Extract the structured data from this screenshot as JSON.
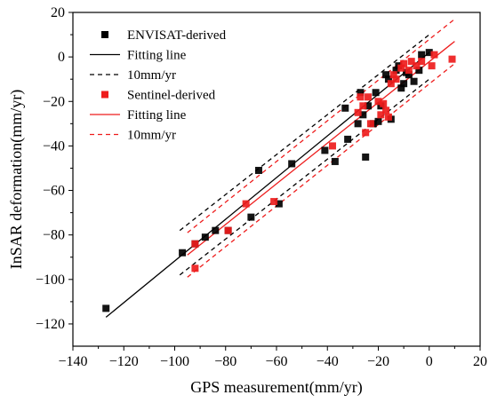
{
  "chart_data": {
    "type": "scatter",
    "xlabel": "GPS measurement(mm/yr)",
    "ylabel": "InSAR deformation(mm/yr)",
    "xlim": [
      -140,
      20
    ],
    "ylim": [
      -130,
      20
    ],
    "xticks": [
      -140,
      -120,
      -100,
      -80,
      -60,
      -40,
      -20,
      0,
      20
    ],
    "yticks": [
      -120,
      -100,
      -80,
      -60,
      -40,
      -20,
      0,
      20
    ],
    "xtick_labels": [
      "−140",
      "−120",
      "−100",
      "−80",
      "−60",
      "−40",
      "−20",
      "0",
      "20"
    ],
    "ytick_labels": [
      "−120",
      "−100",
      "−80",
      "−60",
      "−40",
      "−20",
      "0",
      "20"
    ],
    "grid": false,
    "legend_position": "top-left",
    "series": [
      {
        "name": "ENVISAT-derived",
        "kind": "points",
        "marker": "square",
        "color": "#000000",
        "points": [
          [
            -127,
            -113
          ],
          [
            -97,
            -88
          ],
          [
            -92,
            -84
          ],
          [
            -88,
            -81
          ],
          [
            -84,
            -78
          ],
          [
            -79,
            -78
          ],
          [
            -70,
            -72
          ],
          [
            -67,
            -51
          ],
          [
            -59,
            -66
          ],
          [
            -54,
            -48
          ],
          [
            -41,
            -42
          ],
          [
            -37,
            -47
          ],
          [
            -33,
            -23
          ],
          [
            -32,
            -37
          ],
          [
            -28,
            -30
          ],
          [
            -27,
            -16
          ],
          [
            -26,
            -26
          ],
          [
            -25,
            -45
          ],
          [
            -24,
            -22
          ],
          [
            -22,
            -30
          ],
          [
            -21,
            -16
          ],
          [
            -20,
            -29
          ],
          [
            -19,
            -22
          ],
          [
            -17,
            -8
          ],
          [
            -16,
            -10
          ],
          [
            -15,
            -28
          ],
          [
            -13,
            -6
          ],
          [
            -12,
            -4
          ],
          [
            -11,
            -14
          ],
          [
            -10,
            -12
          ],
          [
            -9,
            -7
          ],
          [
            -8,
            -8
          ],
          [
            -6,
            -11
          ],
          [
            -4,
            -6
          ],
          [
            -3,
            1
          ],
          [
            0,
            2
          ]
        ]
      },
      {
        "name": "Fitting line",
        "kind": "line",
        "color": "#000000",
        "dash": "solid",
        "x": [
          -127,
          0
        ],
        "y": [
          -117,
          2
        ]
      },
      {
        "name": "10mm/yr",
        "kind": "band",
        "color": "#000000",
        "dash": "dashed",
        "x": [
          -98,
          0
        ],
        "y_upper": [
          -78,
          10
        ],
        "y_lower": [
          -98,
          -10
        ]
      },
      {
        "name": "Sentinel-derived",
        "kind": "points",
        "marker": "square",
        "color": "#ee1c1c",
        "points": [
          [
            -92,
            -95
          ],
          [
            -92,
            -84
          ],
          [
            -79,
            -78
          ],
          [
            -72,
            -66
          ],
          [
            -61,
            -65
          ],
          [
            -38,
            -40
          ],
          [
            -28,
            -25
          ],
          [
            -27,
            -18
          ],
          [
            -26,
            -22
          ],
          [
            -25,
            -34
          ],
          [
            -24,
            -18
          ],
          [
            -23,
            -30
          ],
          [
            -20,
            -20
          ],
          [
            -19,
            -26
          ],
          [
            -18,
            -21
          ],
          [
            -17,
            -24
          ],
          [
            -16,
            -27
          ],
          [
            -15,
            -12
          ],
          [
            -14,
            -8
          ],
          [
            -13,
            -10
          ],
          [
            -11,
            -5
          ],
          [
            -10,
            -3
          ],
          [
            -8,
            -6
          ],
          [
            -7,
            -2
          ],
          [
            -5,
            -4
          ],
          [
            -3,
            -2
          ],
          [
            1,
            -4
          ],
          [
            2,
            1
          ],
          [
            9,
            -1
          ]
        ]
      },
      {
        "name": "Fitting line",
        "kind": "line",
        "color": "#ee1c1c",
        "dash": "solid",
        "x": [
          -95,
          10
        ],
        "y": [
          -89,
          7
        ]
      },
      {
        "name": "10mm/yr",
        "kind": "band",
        "color": "#ee1c1c",
        "dash": "dashed",
        "x": [
          -95,
          10
        ],
        "y_upper": [
          -79,
          17
        ],
        "y_lower": [
          -99,
          -3
        ]
      }
    ]
  }
}
